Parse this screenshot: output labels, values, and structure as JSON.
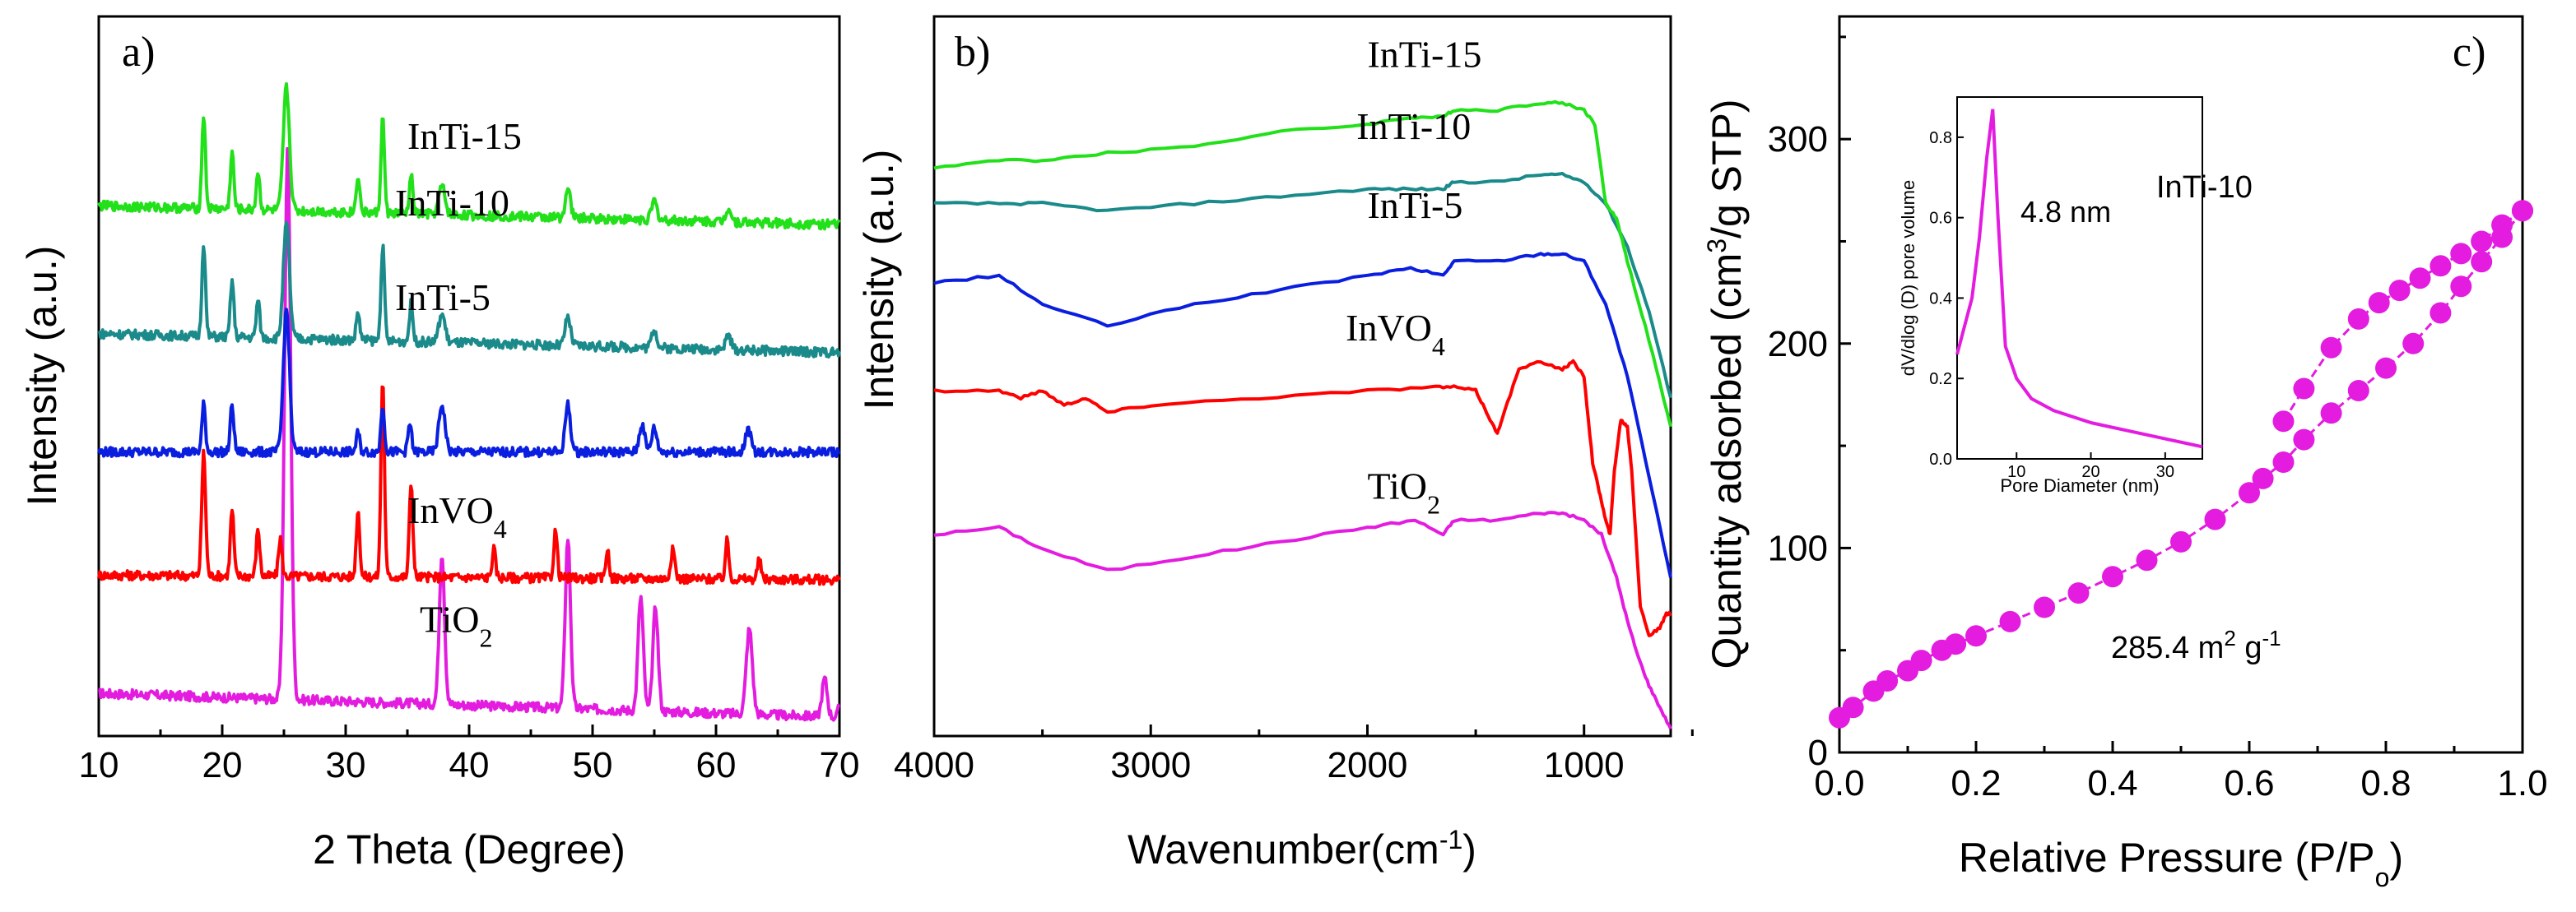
{
  "chart_data": [
    {
      "type": "line",
      "panel_label": "a)",
      "xlabel": "2 Theta (Degree)",
      "ylabel": "Intensity (a.u.)",
      "xlim": [
        10,
        70
      ],
      "xticks": [
        10,
        20,
        30,
        40,
        50,
        60,
        70
      ],
      "yticks": [],
      "series": [
        {
          "name": "TiO2",
          "label_main": "TiO",
          "label_sub": "2",
          "color": "#e31ce0",
          "baseline": 0.45,
          "noise": 0.05,
          "label_x": 36,
          "label_offset": 0.65,
          "peaks": [
            [
              25.3,
              5.8,
              0.35
            ],
            [
              37.8,
              1.6,
              0.3
            ],
            [
              48.0,
              1.8,
              0.3
            ],
            [
              53.9,
              1.2,
              0.3
            ],
            [
              55.1,
              1.1,
              0.3
            ],
            [
              62.7,
              0.9,
              0.35
            ],
            [
              68.8,
              0.4,
              0.3
            ],
            [
              70.3,
              0.4,
              0.3
            ]
          ],
          "slope": -0.25
        },
        {
          "name": "InVO4",
          "label_main": "InVO",
          "label_sub": "4",
          "color": "#ff0000",
          "baseline": 1.7,
          "noise": 0.05,
          "label_x": 35,
          "label_offset": 0.55,
          "peaks": [
            [
              18.5,
              1.3,
              0.22
            ],
            [
              20.8,
              0.7,
              0.2
            ],
            [
              22.9,
              0.5,
              0.2
            ],
            [
              24.7,
              0.4,
              0.2
            ],
            [
              31.0,
              0.7,
              0.2
            ],
            [
              33.0,
              2.1,
              0.2
            ],
            [
              35.3,
              1.0,
              0.2
            ],
            [
              42.0,
              0.3,
              0.2
            ],
            [
              47.0,
              0.5,
              0.2
            ],
            [
              51.2,
              0.3,
              0.2
            ],
            [
              56.5,
              0.3,
              0.25
            ],
            [
              60.9,
              0.4,
              0.2
            ],
            [
              63.5,
              0.2,
              0.2
            ]
          ],
          "slope": -0.05
        },
        {
          "name": "InTi-5",
          "label_main": "InTi-5",
          "label_sub": "",
          "color": "#0a1ee0",
          "baseline": 3.0,
          "noise": 0.05,
          "label_x": 34,
          "label_offset": 1.5,
          "peaks": [
            [
              18.5,
              0.5,
              0.2
            ],
            [
              20.8,
              0.5,
              0.2
            ],
            [
              25.2,
              1.5,
              0.35
            ],
            [
              31.0,
              0.2,
              0.2
            ],
            [
              33.0,
              0.5,
              0.2
            ],
            [
              35.2,
              0.3,
              0.2
            ],
            [
              37.8,
              0.5,
              0.35
            ],
            [
              48.0,
              0.5,
              0.3
            ],
            [
              54.0,
              0.3,
              0.3
            ],
            [
              55.0,
              0.25,
              0.3
            ],
            [
              62.6,
              0.25,
              0.3
            ]
          ],
          "slope": 0.0
        },
        {
          "name": "InTi-10",
          "label_main": "InTi-10",
          "label_sub": "",
          "color": "#1a8a8a",
          "baseline": 4.25,
          "noise": 0.05,
          "label_x": 34,
          "label_offset": 1.25,
          "peaks": [
            [
              18.5,
              1.0,
              0.2
            ],
            [
              20.8,
              0.6,
              0.2
            ],
            [
              22.9,
              0.4,
              0.2
            ],
            [
              25.2,
              1.2,
              0.35
            ],
            [
              31.0,
              0.3,
              0.2
            ],
            [
              33.0,
              1.0,
              0.2
            ],
            [
              35.3,
              0.4,
              0.2
            ],
            [
              37.8,
              0.3,
              0.35
            ],
            [
              48.0,
              0.3,
              0.3
            ],
            [
              55.0,
              0.2,
              0.3
            ],
            [
              61.0,
              0.15,
              0.3
            ]
          ],
          "slope": -0.2
        },
        {
          "name": "InTi-15",
          "label_main": "InTi-15",
          "label_sub": "",
          "color": "#22e01a",
          "baseline": 5.6,
          "noise": 0.05,
          "label_x": 35,
          "label_offset": 0.6,
          "peaks": [
            [
              18.5,
              1.0,
              0.2
            ],
            [
              20.8,
              0.6,
              0.2
            ],
            [
              22.9,
              0.4,
              0.2
            ],
            [
              25.2,
              1.3,
              0.35
            ],
            [
              31.0,
              0.4,
              0.2
            ],
            [
              33.0,
              1.0,
              0.2
            ],
            [
              35.3,
              0.4,
              0.2
            ],
            [
              37.8,
              0.3,
              0.35
            ],
            [
              48.0,
              0.3,
              0.3
            ],
            [
              55.0,
              0.2,
              0.3
            ],
            [
              61.0,
              0.15,
              0.3
            ]
          ],
          "slope": -0.2
        }
      ],
      "ylim": [
        0,
        7.6
      ]
    },
    {
      "type": "line",
      "panel_label": "b)",
      "xlabel": "Wavenumber(cm-1)",
      "xlabel_main": "Wavenumber(cm",
      "xlabel_sup": "-1",
      "xlabel_end": ")",
      "ylabel": "Intensity (a.u.)",
      "xlim": [
        4000,
        600
      ],
      "xticks": [
        4000,
        3000,
        2000,
        1000
      ],
      "ylim": [
        0,
        100
      ],
      "series": [
        {
          "name": "TiO2",
          "label_main": "TiO",
          "label_sub": "2",
          "color": "#e31ce0",
          "label_x": 2000,
          "label_y": 33,
          "x": [
            4000,
            3700,
            3500,
            3200,
            2800,
            2400,
            2000,
            1780,
            1650,
            1600,
            1400,
            1200,
            1100,
            1000,
            920,
            850,
            800,
            750,
            700,
            650,
            600
          ],
          "y": [
            28,
            29,
            26,
            23,
            25,
            27,
            29,
            30,
            28,
            30,
            30,
            31,
            31,
            30,
            28,
            22,
            16,
            11,
            7,
            4,
            1
          ]
        },
        {
          "name": "InVO4",
          "label_main": "InVO",
          "label_sub": "4",
          "color": "#ff0000",
          "label_x": 2100,
          "label_y": 55,
          "x": [
            4000,
            3700,
            3600,
            3500,
            3400,
            3300,
            3200,
            3000,
            2500,
            2000,
            1700,
            1600,
            1500,
            1450,
            1400,
            1380,
            1300,
            1200,
            1100,
            1050,
            1000,
            960,
            930,
            900,
            880,
            860,
            830,
            800,
            780,
            740,
            700,
            650,
            620,
            600
          ],
          "y": [
            48,
            48,
            47,
            48,
            46,
            47,
            45,
            46,
            47,
            48,
            48.5,
            48.5,
            48,
            45,
            42,
            44,
            51,
            52,
            51,
            52,
            50,
            38,
            34,
            30,
            28,
            37,
            44,
            43,
            37,
            18,
            14,
            15,
            17,
            17
          ]
        },
        {
          "name": "InTi-5",
          "label_main": "InTi-5",
          "label_sub": "",
          "color": "#0a1ee0",
          "label_x": 2000,
          "label_y": 72,
          "x": [
            4000,
            3700,
            3500,
            3200,
            2800,
            2400,
            2000,
            1800,
            1650,
            1600,
            1400,
            1200,
            1100,
            1000,
            900,
            800,
            700,
            600
          ],
          "y": [
            63,
            64,
            60,
            57,
            60,
            62,
            64,
            65,
            64,
            66,
            66,
            67,
            67,
            66,
            60,
            50,
            36,
            22
          ]
        },
        {
          "name": "InTi-10",
          "label_main": "InTi-10",
          "label_sub": "",
          "color": "#1a8a8a",
          "label_x": 2050,
          "label_y": 83,
          "x": [
            4000,
            3700,
            3500,
            3200,
            2800,
            2400,
            2000,
            1800,
            1650,
            1600,
            1400,
            1200,
            1100,
            1000,
            900,
            800,
            700,
            600
          ],
          "y": [
            74,
            74,
            74,
            73,
            74,
            75,
            76,
            76,
            76,
            77,
            77,
            78,
            78,
            77,
            74,
            68,
            59,
            47
          ]
        },
        {
          "name": "InTi-15",
          "label_main": "InTi-15",
          "label_sub": "",
          "color": "#22e01a",
          "label_x": 2000,
          "label_y": 93,
          "x": [
            4000,
            3700,
            3500,
            3200,
            2800,
            2400,
            2000,
            1800,
            1650,
            1600,
            1400,
            1200,
            1100,
            1000,
            950,
            900,
            850,
            800,
            700,
            600
          ],
          "y": [
            79,
            80,
            80,
            81,
            82,
            84,
            85,
            86,
            86,
            87,
            87,
            88,
            88,
            87,
            85,
            74,
            72,
            66,
            55,
            43
          ]
        }
      ]
    },
    {
      "type": "line",
      "panel_label": "c)",
      "xlabel": "Relative Pressure (P/Po)",
      "xlabel_main": "Relative Pressure (P/P",
      "xlabel_sub": "o",
      "xlabel_end": ")",
      "ylabel": "Quantity adsorbed (cm3/g STP)",
      "ylabel_main": "Quantity adsorbed (cm",
      "ylabel_sup": "3",
      "ylabel_end": "/g STP)",
      "xlim": [
        0.0,
        1.0
      ],
      "ylim": [
        0,
        360
      ],
      "xticks": [
        0.0,
        0.2,
        0.4,
        0.6,
        0.8,
        1.0
      ],
      "xtick_labels": [
        "0.0",
        "0.2",
        "0.4",
        "0.6",
        "0.8",
        "1.0"
      ],
      "yticks": [
        0,
        100,
        200,
        300
      ],
      "color": "#e31ce0",
      "sample_label": "InTi-10",
      "bet_label_main": "285.4 m",
      "bet_label_sup": "2",
      "bet_label_end": " g",
      "bet_label_sup2": "-1",
      "series": [
        {
          "name": "adsorption",
          "x": [
            0.0,
            0.02,
            0.05,
            0.07,
            0.1,
            0.12,
            0.15,
            0.17,
            0.2,
            0.25,
            0.3,
            0.35,
            0.4,
            0.45,
            0.5,
            0.55,
            0.6,
            0.62,
            0.65,
            0.68,
            0.72,
            0.76,
            0.8,
            0.84,
            0.88,
            0.91,
            0.94,
            0.97,
            1.0
          ],
          "y": [
            17,
            22,
            30,
            35,
            40,
            45,
            50,
            53,
            57,
            64,
            71,
            78,
            86,
            94,
            103,
            114,
            127,
            134,
            142,
            153,
            166,
            177,
            188,
            200,
            215,
            228,
            240,
            252,
            265
          ]
        },
        {
          "name": "desorption",
          "x": [
            1.0,
            0.97,
            0.94,
            0.91,
            0.88,
            0.85,
            0.82,
            0.79,
            0.76,
            0.72,
            0.68,
            0.65
          ],
          "y": [
            265,
            258,
            250,
            244,
            238,
            232,
            226,
            220,
            212,
            198,
            178,
            162
          ]
        }
      ],
      "inset": {
        "xlabel": "Pore Diameter (nm)",
        "ylabel": "dV/dlog (D) pore volume",
        "xlim": [
          2,
          35
        ],
        "ylim": [
          0,
          0.9
        ],
        "xticks": [
          10,
          20,
          30
        ],
        "yticks": [
          0.0,
          0.2,
          0.4,
          0.6,
          0.8
        ],
        "ytick_labels": [
          "0.0",
          "0.2",
          "0.4",
          "0.6",
          "0.8"
        ],
        "annotation": "4.8 nm",
        "x": [
          2,
          3,
          4,
          5,
          6,
          6.8,
          7.5,
          8.5,
          10,
          12,
          15,
          20,
          25,
          30,
          35
        ],
        "y": [
          0.26,
          0.33,
          0.4,
          0.55,
          0.75,
          0.87,
          0.6,
          0.28,
          0.2,
          0.15,
          0.12,
          0.09,
          0.07,
          0.05,
          0.03
        ]
      }
    }
  ]
}
